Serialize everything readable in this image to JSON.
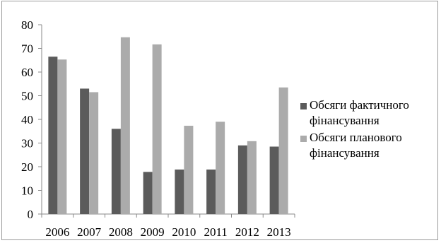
{
  "chart_data": {
    "type": "bar",
    "categories": [
      "2006",
      "2007",
      "2008",
      "2009",
      "2010",
      "2011",
      "2012",
      "2013"
    ],
    "series": [
      {
        "name": "Обсяги фактичного\nфінансування",
        "color": "#5b5b5b",
        "values": [
          66.5,
          53,
          36,
          17.8,
          18.8,
          18.8,
          29,
          28.5
        ]
      },
      {
        "name": "Обсяги планового\nфінансування",
        "color": "#ababab",
        "values": [
          65.3,
          51.5,
          74.7,
          71.7,
          37.3,
          39,
          30.8,
          53.5
        ]
      }
    ],
    "y_ticks": [
      "0",
      "10",
      "20",
      "30",
      "40",
      "50",
      "60",
      "70",
      "80"
    ],
    "ylim": [
      0,
      80
    ],
    "grid": false,
    "legend": "right"
  }
}
